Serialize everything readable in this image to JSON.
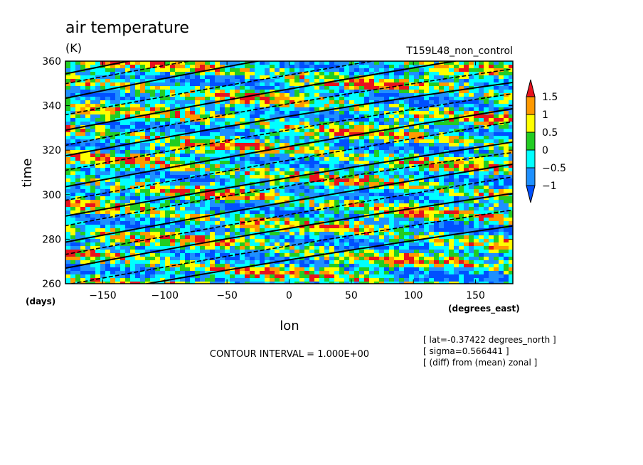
{
  "chart_data": {
    "type": "heatmap",
    "title": "air temperature",
    "units": "(K)",
    "experiment": "T159L48_non_control",
    "xlabel": "lon",
    "xunits": "(degrees_east)",
    "ylabel": "time",
    "yunits": "(days)",
    "xlim": [
      -180,
      180
    ],
    "ylim": [
      260,
      360
    ],
    "xticks": [
      -150,
      -100,
      -50,
      0,
      50,
      100,
      150
    ],
    "yticks": [
      260,
      280,
      300,
      320,
      340,
      360
    ],
    "colorbar": {
      "labels": [
        "1.5",
        "1",
        "0.5",
        "0",
        "-0.5",
        "-1"
      ],
      "colors": [
        "#e8121d",
        "#ff9900",
        "#ffff00",
        "#22cc22",
        "#00ffff",
        "#1e90ff",
        "#0050ff"
      ]
    },
    "contour_interval": "CONTOUR INTERVAL = 1.000E+00",
    "annotations": [
      "[ lat=-0.37422 degrees_north ]",
      "[ sigma=0.566441 ]",
      "[ (diff) from (mean) zonal ]"
    ]
  }
}
